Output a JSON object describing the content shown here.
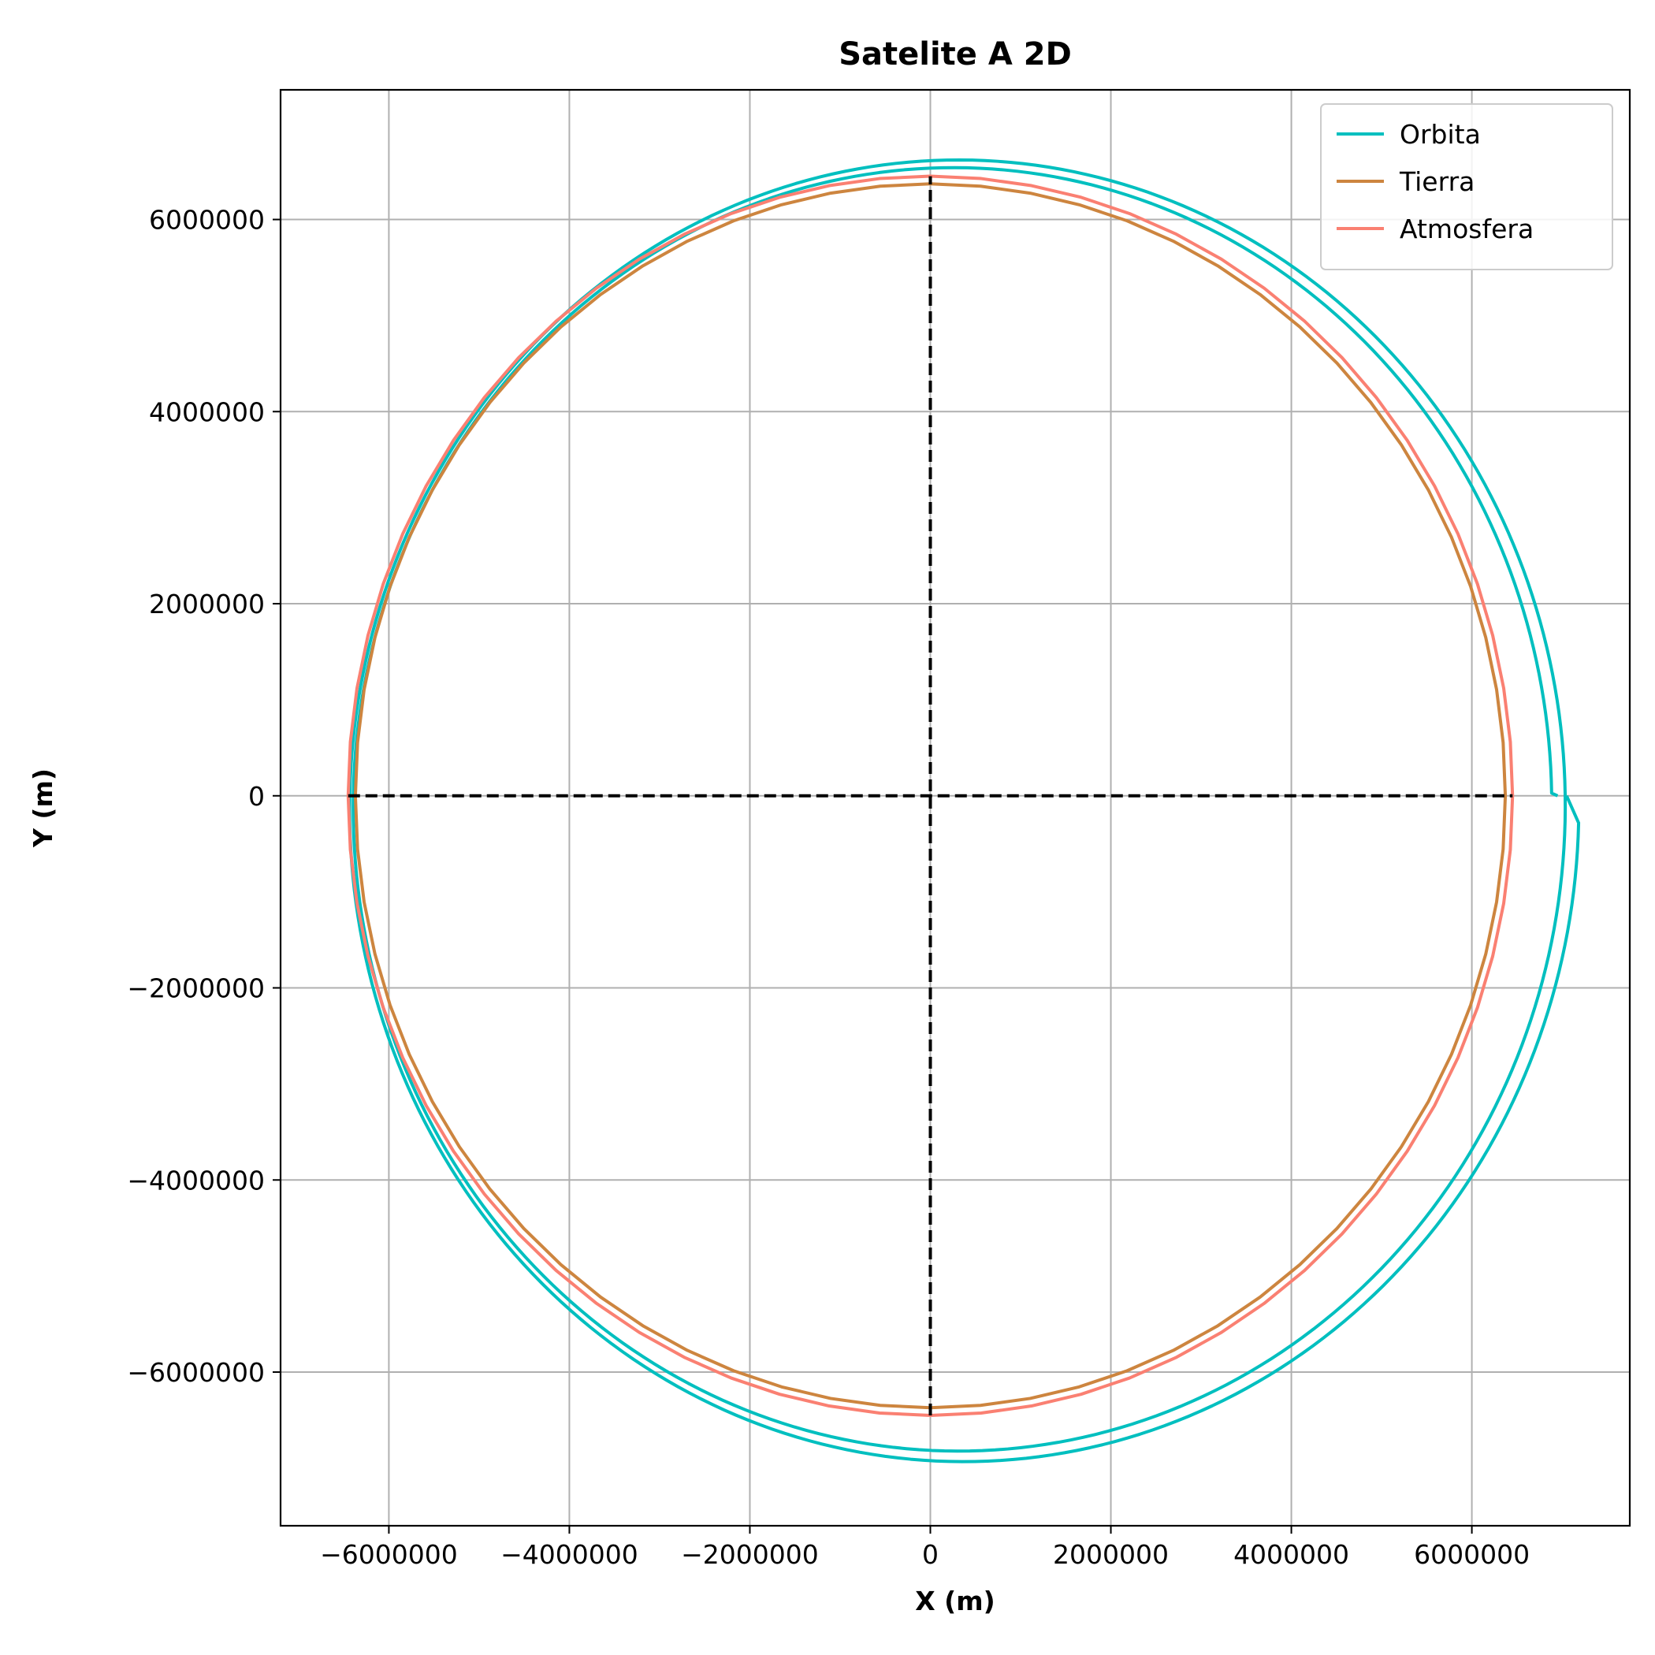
{
  "chart_data": {
    "type": "line",
    "title": "Satelite A 2D",
    "xlabel": "X (m)",
    "ylabel": "Y (m)",
    "xlim": [
      -7200000,
      7750000
    ],
    "ylim": [
      -7600000,
      7350000
    ],
    "xticks": [
      -6000000,
      -4000000,
      -2000000,
      0,
      2000000,
      4000000,
      6000000
    ],
    "yticks": [
      -6000000,
      -4000000,
      -2000000,
      0,
      2000000,
      4000000,
      6000000
    ],
    "xtick_labels": [
      "−6000000",
      "−4000000",
      "−2000000",
      "0",
      "2000000",
      "4000000",
      "6000000"
    ],
    "ytick_labels": [
      "−6000000",
      "−4000000",
      "−2000000",
      "0",
      "2000000",
      "4000000",
      "6000000"
    ],
    "grid": true,
    "legend_position": "top-right",
    "series": [
      {
        "name": "Orbita",
        "kind": "spiral",
        "color": "#00bfbf",
        "start": [
          6950000,
          0
        ],
        "end": [
          7050000,
          0
        ],
        "turns": 2,
        "center_start": [
          255000,
          -110000
        ],
        "center_end": [
          365000,
          -140000
        ],
        "radius_start": 6630000,
        "radius_end": 6820000
      },
      {
        "name": "Tierra",
        "kind": "circle",
        "color": "#cd853f",
        "center": [
          0,
          0
        ],
        "radius": 6371000
      },
      {
        "name": "Atmosfera",
        "kind": "circle",
        "color": "#fa8072",
        "center": [
          0,
          0
        ],
        "radius": 6451000
      }
    ],
    "reference_lines": [
      {
        "name": "x-axis-line",
        "x": [
          -6451000,
          6451000
        ],
        "y": [
          0,
          0
        ],
        "color": "#000000",
        "style": "dashed"
      },
      {
        "name": "y-axis-line",
        "x": [
          0,
          0
        ],
        "y": [
          -6451000,
          6451000
        ],
        "color": "#000000",
        "style": "dashed"
      }
    ]
  }
}
